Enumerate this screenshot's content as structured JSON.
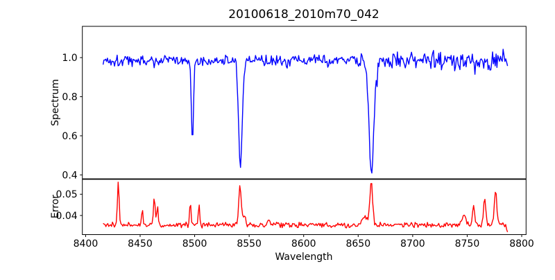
{
  "figure": {
    "title": "20100618_2010m70_042",
    "xlabel": "Wavelength",
    "background": "#ffffff",
    "spine_color": "#000000"
  },
  "chart_data": [
    {
      "type": "line",
      "panel": "spectrum",
      "ylabel": "Spectrum",
      "color": "#0000ff",
      "xlim": [
        8397,
        8804
      ],
      "ylim": [
        0.38,
        1.16
      ],
      "x_data_range": [
        8416,
        8787
      ],
      "yticks": [
        0.4,
        0.6,
        0.8,
        1.0
      ],
      "ytick_labels": [
        "0.4",
        "0.6",
        "0.8",
        "1.0"
      ],
      "continuum": 0.985,
      "noise": {
        "base_amplitude": 0.021,
        "right_extra_amplitude": 0.019,
        "right_noise_start": 8600,
        "dip_probability": 0.045,
        "dip_max": 0.05,
        "spike_probability": 0.02,
        "spike_max": 0.06
      },
      "absorption_lines": [
        {
          "center": 8498,
          "depth": 0.4,
          "sigma": 1.0
        },
        {
          "center": 8542,
          "depth": 0.535,
          "sigma": 1.7
        },
        {
          "center": 8662,
          "depth": 0.565,
          "sigma": 2.2
        }
      ]
    },
    {
      "type": "line",
      "panel": "error",
      "ylabel": "Error",
      "color": "#ff0000",
      "xlim": [
        8397,
        8804
      ],
      "ylim": [
        0.031,
        0.057
      ],
      "x_data_range": [
        8416,
        8787
      ],
      "yticks": [
        0.04,
        0.05
      ],
      "ytick_labels": [
        "0.04",
        "0.05"
      ],
      "baseline": 0.0355,
      "noise_amplitude": 0.0015,
      "end_values": [
        0.0335,
        0.0322
      ],
      "peaks": [
        {
          "center": 8430,
          "height": 0.02,
          "sigma": 0.8
        },
        {
          "center": 8452,
          "height": 0.0068,
          "sigma": 0.7
        },
        {
          "center": 8463,
          "height": 0.0125,
          "sigma": 0.9
        },
        {
          "center": 8466,
          "height": 0.0095,
          "sigma": 0.6
        },
        {
          "center": 8496,
          "height": 0.009,
          "sigma": 0.8
        },
        {
          "center": 8504,
          "height": 0.0098,
          "sigma": 0.7
        },
        {
          "center": 8541.5,
          "height": 0.018,
          "sigma": 1.1
        },
        {
          "center": 8545,
          "height": 0.0045,
          "sigma": 1.6
        },
        {
          "center": 8568,
          "height": 0.0022,
          "sigma": 1.2
        },
        {
          "center": 8656,
          "height": 0.004,
          "sigma": 2.5
        },
        {
          "center": 8662,
          "height": 0.0195,
          "sigma": 1.3
        },
        {
          "center": 8747,
          "height": 0.0045,
          "sigma": 1.8
        },
        {
          "center": 8756,
          "height": 0.0095,
          "sigma": 1.0
        },
        {
          "center": 8766,
          "height": 0.0135,
          "sigma": 1.0
        },
        {
          "center": 8776,
          "height": 0.0165,
          "sigma": 1.1
        }
      ]
    }
  ],
  "axes": {
    "xticks": [
      8400,
      8450,
      8500,
      8550,
      8600,
      8650,
      8700,
      8750,
      8800
    ],
    "xtick_labels": [
      "8400",
      "8450",
      "8500",
      "8550",
      "8600",
      "8650",
      "8700",
      "8750",
      "8800"
    ]
  }
}
